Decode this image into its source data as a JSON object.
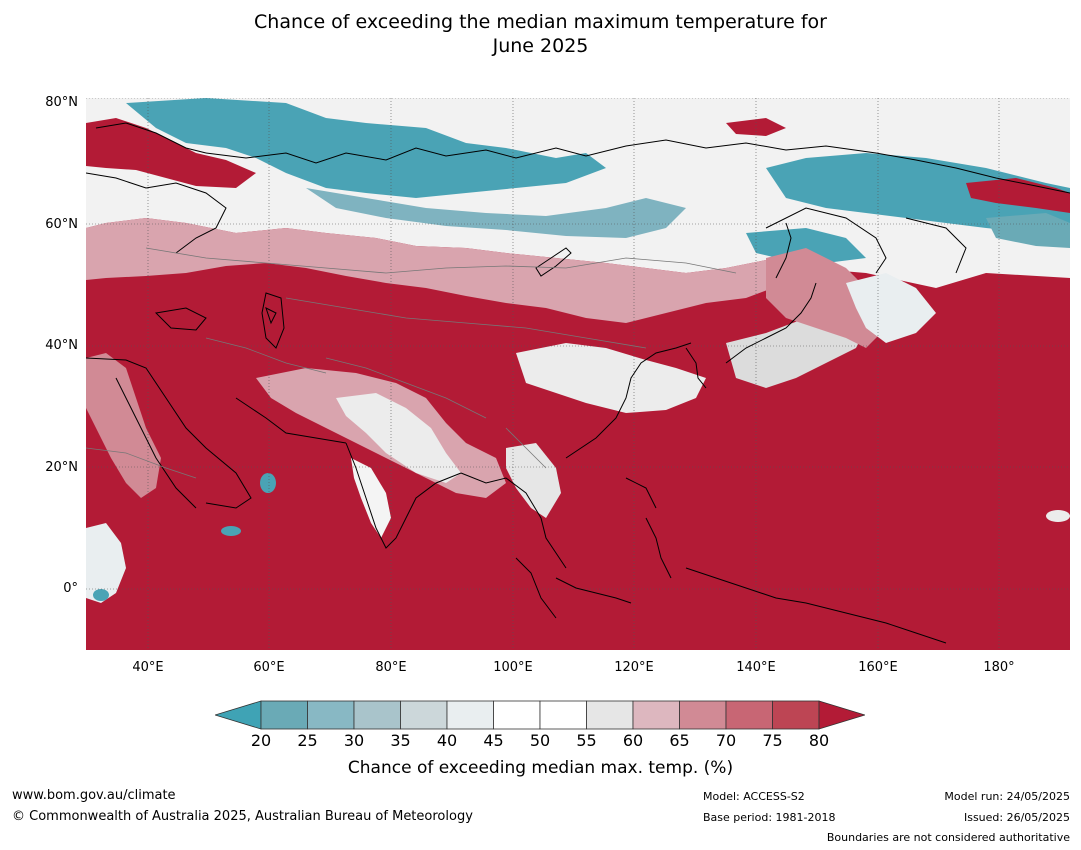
{
  "title_line1": "Chance of exceeding the median maximum temperature for",
  "title_line2": "June 2025",
  "lat_labels": [
    "80°N",
    "60°N",
    "40°N",
    "20°N",
    "0°"
  ],
  "lon_labels": [
    "40°E",
    "60°E",
    "80°E",
    "100°E",
    "120°E",
    "140°E",
    "160°E",
    "180°"
  ],
  "colorbar": {
    "ticks": [
      "20",
      "25",
      "30",
      "35",
      "40",
      "45",
      "50",
      "55",
      "60",
      "65",
      "70",
      "75",
      "80"
    ],
    "colors": [
      "#3fa3b5",
      "#6aaab6",
      "#88b8c4",
      "#a9c4cb",
      "#ccd7da",
      "#e9eef0",
      "#ffffff",
      "#ffffff",
      "#e6e6e6",
      "#ddb7bf",
      "#d18a95",
      "#c86674",
      "#bd4554",
      "#b31b36"
    ],
    "label": "Chance of exceeding median max. temp. (%)"
  },
  "footer": {
    "url": "www.bom.gov.au/climate",
    "copyright": "© Commonwealth of Australia 2025, Australian Bureau of Meteorology",
    "model": "Model: ACCESS-S2",
    "base_period": "Base period: 1981-2018",
    "model_run": "Model run: 24/05/2025",
    "issued": "Issued: 26/05/2025",
    "disclaimer": "Boundaries are not considered authoritative"
  }
}
